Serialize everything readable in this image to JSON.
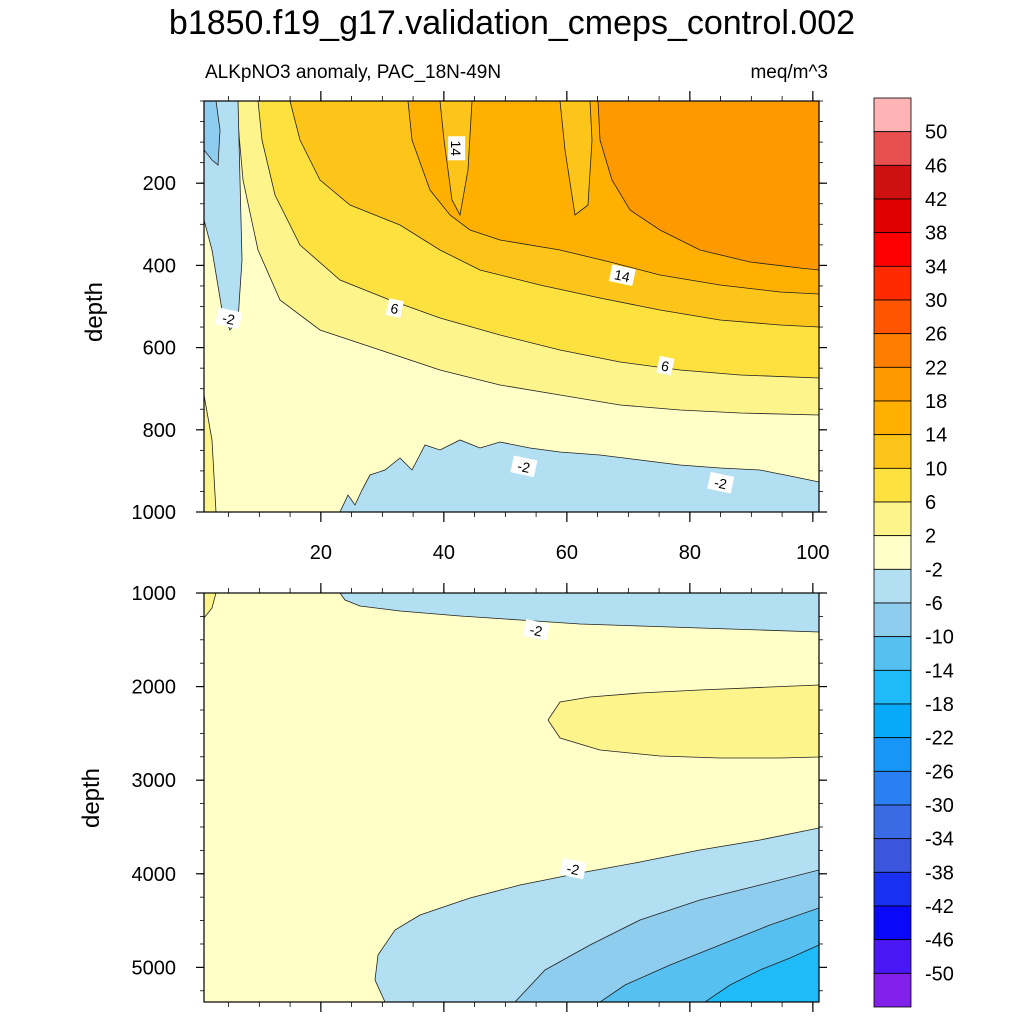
{
  "figure": {
    "title": "b1850.f19_g17.validation_cmeps_control.002",
    "subtitle_left": "ALKpNO3 anomaly, PAC_18N-49N",
    "subtitle_right": "meq/m^3"
  },
  "chart_data": [
    {
      "type": "contour",
      "panel": "upper",
      "ylabel": "depth",
      "xlim": [
        1,
        101
      ],
      "ylim": [
        0,
        1000
      ],
      "y_reversed": true,
      "x_ticks": [
        20,
        40,
        60,
        80,
        100
      ],
      "y_ticks": [
        200,
        400,
        600,
        800,
        1000
      ],
      "contour_labels": [
        {
          "text": "14",
          "x": 42,
          "y": 115
        },
        {
          "text": "14",
          "x": 69,
          "y": 425
        },
        {
          "text": "6",
          "x": 32,
          "y": 505
        },
        {
          "text": "6",
          "x": 76,
          "y": 645
        },
        {
          "text": "-2",
          "x": 5,
          "y": 530
        },
        {
          "text": "-2",
          "x": 53,
          "y": 890
        },
        {
          "text": "-2",
          "x": 85,
          "y": 930
        }
      ]
    },
    {
      "type": "contour",
      "panel": "lower",
      "ylabel": "depth",
      "xlim": [
        1,
        101
      ],
      "ylim": [
        1000,
        5370
      ],
      "y_reversed": true,
      "y_ticks": [
        1000,
        2000,
        3000,
        4000,
        5000
      ],
      "contour_labels": [
        {
          "text": "-2",
          "x": 55,
          "y": 1400
        },
        {
          "text": "-2",
          "x": 61,
          "y": 3950
        }
      ]
    }
  ],
  "colorbar": {
    "labels": [
      "50",
      "46",
      "42",
      "38",
      "34",
      "30",
      "26",
      "22",
      "18",
      "14",
      "10",
      "6",
      "2",
      "-2",
      "-6",
      "-10",
      "-14",
      "-18",
      "-22",
      "-26",
      "-30",
      "-34",
      "-38",
      "-42",
      "-46",
      "-50"
    ],
    "colors": [
      "#feb4b4",
      "#e85050",
      "#cf1010",
      "#e00000",
      "#ff0000",
      "#ff2a00",
      "#ff5500",
      "#fe7e00",
      "#ff9900",
      "#ffb000",
      "#fdc51a",
      "#fde13e",
      "#fef48c",
      "#ffffc8",
      "#b3dff3",
      "#8fcdee",
      "#56c0f0",
      "#1fbbf8",
      "#07aaf7",
      "#1896f7",
      "#2a80f0",
      "#3a6ae4",
      "#3a56dd",
      "#1a30f0",
      "#0a08f8",
      "#4a18f4",
      "#8020e8"
    ]
  },
  "colors": {
    "neg2_to_2": "#ffffc8",
    "two_to_6": "#fef48c",
    "six_to_10": "#fde13e",
    "ten_to_14": "#fdc51a",
    "fourteen_to_18": "#ffb000",
    "eighteen_to_22": "#ff9900",
    "neg6_to_neg2": "#b3dff3",
    "neg10_to_neg6": "#8fcdee",
    "neg14_to_neg10": "#56c0f0",
    "neg18_to_neg14": "#1fbbf8"
  }
}
